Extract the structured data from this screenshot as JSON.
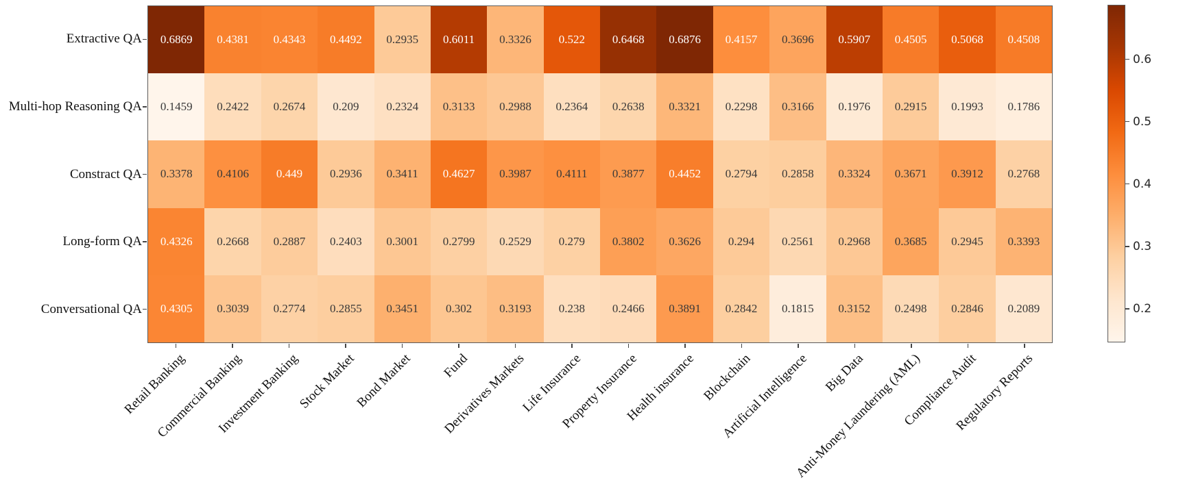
{
  "chart_data": {
    "type": "heatmap",
    "rows": [
      "Extractive QA",
      "Multi-hop Reasoning QA",
      "Constract QA",
      "Long-form QA",
      "Conversational QA"
    ],
    "columns": [
      "Retail Banking",
      "Commercial Banking",
      "Investment Banking",
      "Stock Market",
      "Bond Market",
      "Fund",
      "Derivatives Markets",
      "Life Insurance",
      "Property Insurance",
      "Health insurance",
      "Blockchain",
      "Artificial Intelligence",
      "Big Data",
      "Anti-Money Laundering (AML)",
      "Compliance Audit",
      "Regulatory Reports"
    ],
    "values": [
      [
        0.6869,
        0.4381,
        0.4343,
        0.4492,
        0.2935,
        0.6011,
        0.3326,
        0.522,
        0.6468,
        0.6876,
        0.4157,
        0.3696,
        0.5907,
        0.4505,
        0.5068,
        0.4508
      ],
      [
        0.1459,
        0.2422,
        0.2674,
        0.209,
        0.2324,
        0.3133,
        0.2988,
        0.2364,
        0.2638,
        0.3321,
        0.2298,
        0.3166,
        0.1976,
        0.2915,
        0.1993,
        0.1786
      ],
      [
        0.3378,
        0.4106,
        0.449,
        0.2936,
        0.3411,
        0.4627,
        0.3987,
        0.4111,
        0.3877,
        0.4452,
        0.2794,
        0.2858,
        0.3324,
        0.3671,
        0.3912,
        0.2768
      ],
      [
        0.4326,
        0.2668,
        0.2887,
        0.2403,
        0.3001,
        0.2799,
        0.2529,
        0.279,
        0.3802,
        0.3626,
        0.294,
        0.2561,
        0.2968,
        0.3685,
        0.2945,
        0.3393
      ],
      [
        0.4305,
        0.3039,
        0.2774,
        0.2855,
        0.3451,
        0.302,
        0.3193,
        0.238,
        0.2466,
        0.3891,
        0.2842,
        0.1815,
        0.3152,
        0.2498,
        0.2846,
        0.2089
      ]
    ],
    "vmin": 0.1459,
    "vmax": 0.6876,
    "colormap": "Oranges",
    "colormap_anchors": [
      "#fff5eb",
      "#fee6ce",
      "#fdd0a2",
      "#fdae6b",
      "#fd8d3c",
      "#f16913",
      "#d94801",
      "#a63603",
      "#7f2704"
    ],
    "colorbar_ticks": [
      "0.6",
      "0.5",
      "0.4",
      "0.3",
      "0.2"
    ],
    "annotation_text_light": "#ffffff",
    "annotation_text_dark": "#383838",
    "grid": false,
    "legend_position": "colorbar-right"
  }
}
